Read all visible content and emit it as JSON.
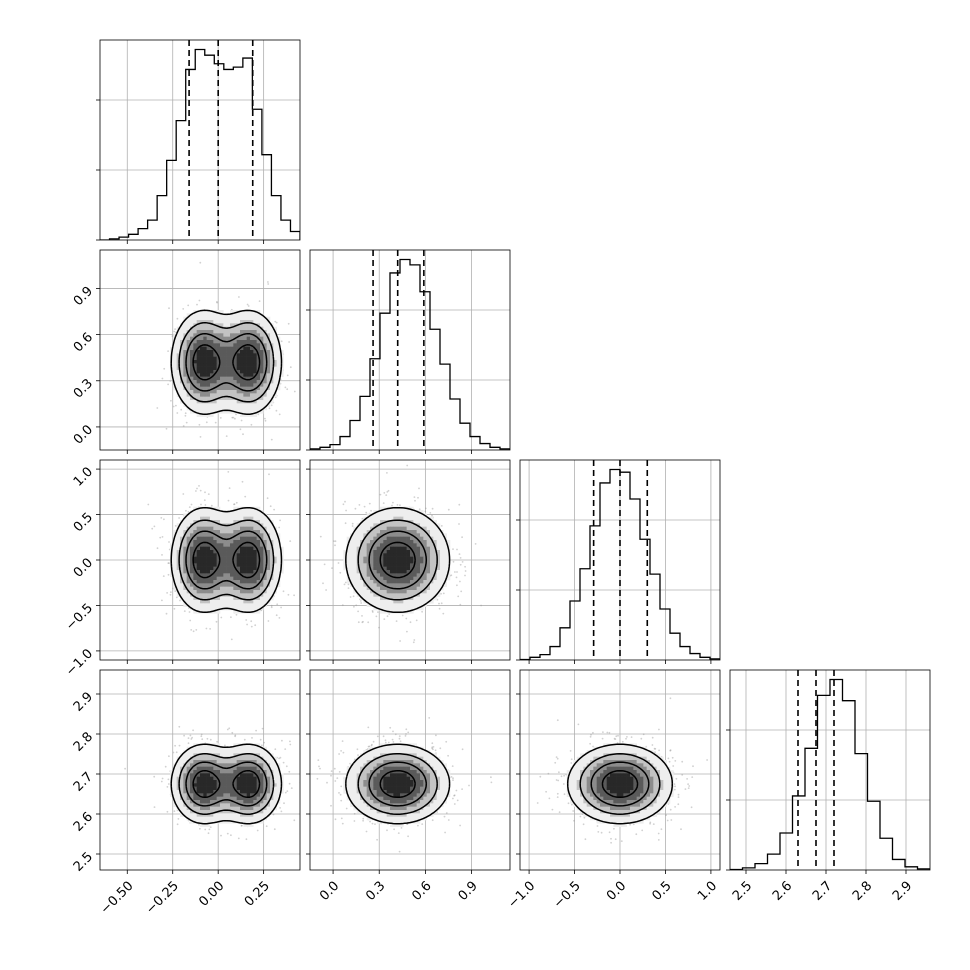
{
  "chart_data": {
    "type": "corner",
    "parameters": [
      {
        "range": [
          -0.65,
          0.45
        ],
        "ticks": [
          -0.5,
          -0.25,
          0.0,
          0.25
        ],
        "tick_labels": [
          "−0.50",
          "−0.25",
          "0.00",
          "0.25"
        ],
        "hist": {
          "counts": [
            0,
            2,
            5,
            10,
            20,
            35,
            78,
            140,
            210,
            300,
            335,
            325,
            310,
            300,
            304,
            320,
            230,
            150,
            78,
            35,
            15
          ],
          "quantiles": [
            -0.16,
            0.0,
            0.19
          ]
        },
        "mode": {
          "type": "bimodal",
          "peaks": [
            -0.08,
            0.17
          ],
          "sigma": 0.09
        }
      },
      {
        "range": [
          -0.15,
          1.15
        ],
        "ticks": [
          0.0,
          0.3,
          0.6,
          0.9
        ],
        "tick_labels": [
          "0.0",
          "0.3",
          "0.6",
          "0.9"
        ],
        "hist": {
          "counts": [
            2,
            5,
            10,
            25,
            55,
            100,
            170,
            255,
            330,
            355,
            345,
            295,
            225,
            160,
            95,
            50,
            25,
            12,
            5,
            2
          ],
          "quantiles": [
            0.26,
            0.42,
            0.59
          ]
        },
        "mode": {
          "type": "normal",
          "mean": 0.42,
          "sigma": 0.17
        }
      },
      {
        "range": [
          -1.1,
          1.1
        ],
        "ticks": [
          -1.0,
          -0.5,
          0.0,
          0.5,
          1.0
        ],
        "tick_labels": [
          "−1.0",
          "−0.5",
          "0.0",
          "0.5",
          "1.0"
        ],
        "hist": {
          "counts": [
            1,
            5,
            10,
            25,
            60,
            110,
            170,
            250,
            330,
            355,
            350,
            300,
            225,
            160,
            95,
            50,
            25,
            12,
            5,
            2
          ],
          "quantiles": [
            -0.29,
            0.0,
            0.3
          ]
        },
        "mode": {
          "type": "normal",
          "mean": 0.0,
          "sigma": 0.29
        }
      },
      {
        "range": [
          2.46,
          2.96
        ],
        "ticks": [
          2.5,
          2.6,
          2.7,
          2.8,
          2.9
        ],
        "tick_labels": [
          "2.5",
          "2.6",
          "2.7",
          "2.8",
          "2.9"
        ],
        "hist": {
          "counts": [
            1,
            4,
            12,
            30,
            70,
            140,
            230,
            330,
            360,
            320,
            220,
            130,
            60,
            20,
            6,
            2
          ],
          "quantiles": [
            2.63,
            2.675,
            2.72
          ]
        },
        "mode": {
          "type": "normal",
          "mean": 2.675,
          "sigma": 0.05
        }
      }
    ],
    "grid": true
  }
}
